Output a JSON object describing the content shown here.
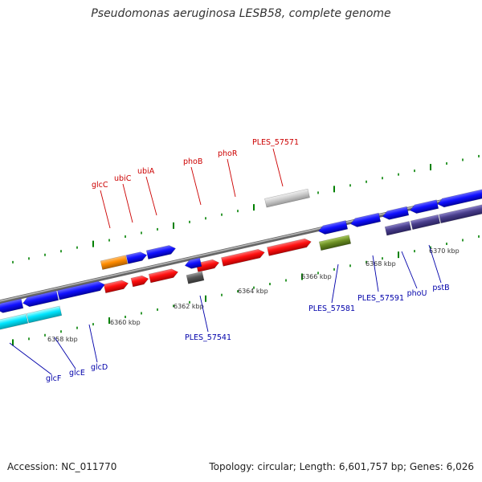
{
  "title": "Pseudomonas aeruginosa LESB58, complete genome",
  "footer": {
    "accession": "Accession: NC_011770",
    "topology": "Topology: circular; Length: 6,601,757 bp; Genes: 6,026"
  },
  "scale": {
    "unit": "kbp",
    "ticks": [
      6358,
      6360,
      6362,
      6364,
      6366,
      6368,
      6370
    ]
  },
  "colors": {
    "red": "#ff0000",
    "blue": "#0000ff",
    "orange": "#ff8c00",
    "cyan": "#00e5ff",
    "olive": "#6b8e23",
    "darkslate": "#483d8b",
    "lightgray": "#cccccc",
    "darkgray": "#555555",
    "label_red": "#cc0000",
    "label_blue": "#0000aa",
    "tick_green": "#008000"
  },
  "genes": [
    {
      "name": "glcC",
      "label_color": "red"
    },
    {
      "name": "ubiC",
      "label_color": "red"
    },
    {
      "name": "ubiA",
      "label_color": "red"
    },
    {
      "name": "phoB",
      "label_color": "red"
    },
    {
      "name": "phoR",
      "label_color": "red"
    },
    {
      "name": "PLES_57571",
      "label_color": "red"
    },
    {
      "name": "glcF",
      "label_color": "blue"
    },
    {
      "name": "glcE",
      "label_color": "blue"
    },
    {
      "name": "glcD",
      "label_color": "blue"
    },
    {
      "name": "PLES_57541",
      "label_color": "blue"
    },
    {
      "name": "PLES_57581",
      "label_color": "blue"
    },
    {
      "name": "PLES_57591",
      "label_color": "blue"
    },
    {
      "name": "phoU",
      "label_color": "blue"
    },
    {
      "name": "pstB",
      "label_color": "blue"
    }
  ]
}
